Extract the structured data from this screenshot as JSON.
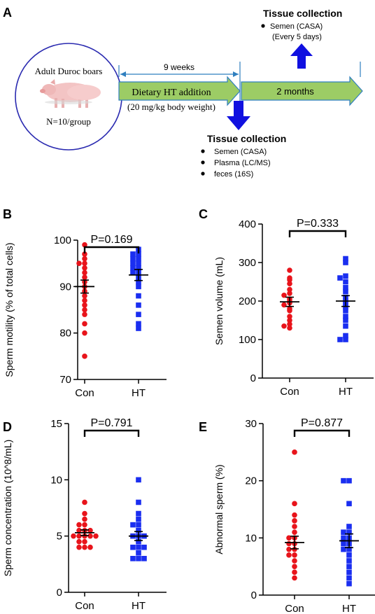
{
  "colors": {
    "con": "#e8141b",
    "ht": "#1a2ef0",
    "arrow_fill": "#9ccc65",
    "arrow_stroke": "#2f7fbf",
    "circle_stroke": "#2a2ab0",
    "big_arrow": "#1010e0"
  },
  "panel_a": {
    "letter": "A",
    "circle_title": "Adult Duroc boars",
    "circle_group": "N=10/group",
    "pig_icon": "pig-image",
    "span_label": "9 weeks",
    "arrow1_line1": "Dietary HT addition",
    "arrow1_line2": "(20 mg/kg body weight)",
    "arrow2_label": "2 months",
    "top_collection_title": "Tissue collection",
    "top_items": [
      "Semen (CASA)",
      "(Every 5 days)"
    ],
    "bottom_collection_title": "Tissue collection",
    "bottom_items": [
      "Semen (CASA)",
      "Plasma (LC/MS)",
      "feces (16S)"
    ]
  },
  "chart_data": [
    {
      "panel": "B",
      "type": "scatter",
      "ylabel": "Sperm motility (% of total cells)",
      "ylim": [
        70,
        100
      ],
      "yticks": [
        70,
        80,
        90,
        100
      ],
      "categories": [
        "Con",
        "HT"
      ],
      "pvalue": "P=0.169",
      "series": [
        {
          "group": "Con",
          "marker": "circle",
          "mean": 90.0,
          "sem": 1.4,
          "values": [
            99,
            97,
            96,
            95,
            95,
            94,
            93,
            92,
            91,
            90,
            89,
            88,
            87,
            86,
            85,
            84,
            82,
            80,
            75
          ]
        },
        {
          "group": "HT",
          "marker": "square",
          "mean": 92.5,
          "sem": 1.2,
          "values": [
            98,
            97,
            97,
            96,
            96,
            95,
            95,
            94,
            94,
            93,
            93,
            92,
            91,
            90,
            88,
            86,
            84,
            82,
            81
          ]
        }
      ]
    },
    {
      "panel": "C",
      "type": "scatter",
      "ylabel": "Semen volume (mL)",
      "ylim": [
        0,
        400
      ],
      "yticks": [
        0,
        100,
        200,
        300,
        400
      ],
      "categories": [
        "Con",
        "HT"
      ],
      "pvalue": "P=0.333",
      "series": [
        {
          "group": "Con",
          "marker": "circle",
          "mean": 198,
          "sem": 12,
          "values": [
            280,
            260,
            255,
            245,
            230,
            220,
            215,
            205,
            200,
            195,
            190,
            180,
            175,
            160,
            150,
            140,
            135,
            130
          ]
        },
        {
          "group": "HT",
          "marker": "square",
          "mean": 200,
          "sem": 14,
          "values": [
            310,
            300,
            265,
            260,
            250,
            235,
            225,
            210,
            200,
            195,
            185,
            175,
            160,
            150,
            135,
            110,
            100,
            100
          ]
        }
      ]
    },
    {
      "panel": "D",
      "type": "scatter",
      "ylabel": "Sperm concentration (10^8/mL)",
      "ylim": [
        0,
        15
      ],
      "yticks": [
        0,
        5,
        10,
        15
      ],
      "categories": [
        "Con",
        "HT"
      ],
      "pvalue": "P=0.791",
      "series": [
        {
          "group": "Con",
          "marker": "circle",
          "mean": 5.3,
          "sem": 0.25,
          "values": [
            8,
            7,
            6.5,
            6,
            6,
            5.5,
            5.5,
            5.5,
            5,
            5,
            5,
            5,
            5,
            4.5,
            4.5,
            4,
            4,
            4
          ]
        },
        {
          "group": "HT",
          "marker": "square",
          "mean": 5.0,
          "sem": 0.4,
          "values": [
            10,
            8,
            7,
            6.5,
            6,
            6,
            5.5,
            5,
            5,
            5,
            4.5,
            4,
            4,
            4,
            3.5,
            3,
            3,
            3
          ]
        }
      ]
    },
    {
      "panel": "E",
      "type": "scatter",
      "ylabel": "Abnormal sperm (%)",
      "ylim": [
        0,
        30
      ],
      "yticks": [
        0,
        10,
        20,
        30
      ],
      "categories": [
        "Con",
        "HT"
      ],
      "pvalue": "P=0.877",
      "series": [
        {
          "group": "Con",
          "marker": "circle",
          "mean": 9.2,
          "sem": 1.1,
          "values": [
            25,
            16,
            14,
            13,
            12,
            11,
            10,
            10,
            9,
            9,
            8,
            8,
            7,
            7,
            6,
            5,
            4,
            3
          ]
        },
        {
          "group": "HT",
          "marker": "square",
          "mean": 9.5,
          "sem": 1.2,
          "values": [
            20,
            20,
            16,
            12,
            11,
            11,
            10,
            10,
            9,
            9,
            8,
            8,
            7,
            6,
            5,
            4,
            3,
            2
          ]
        }
      ]
    }
  ]
}
